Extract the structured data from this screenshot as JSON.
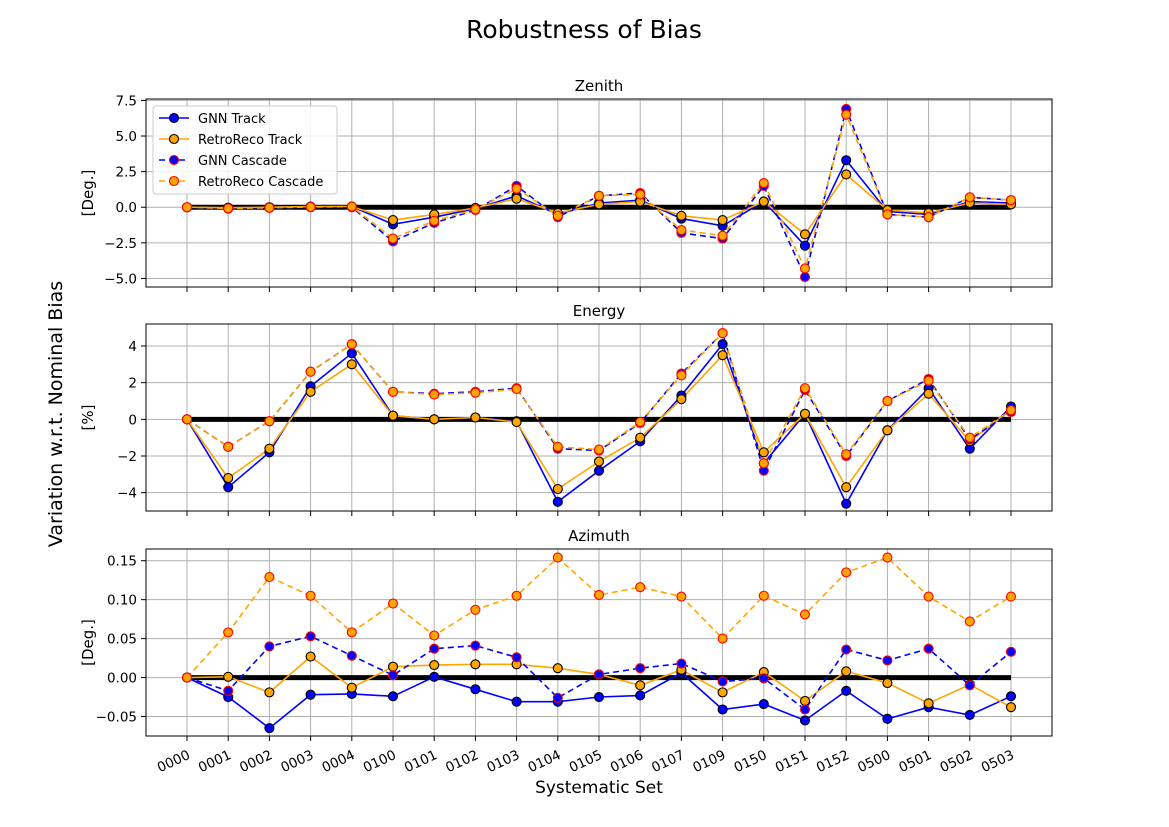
{
  "figure": {
    "title": "Robustness of Bias",
    "ylabel": "Variation w.r.t. Nominal Bias",
    "xlabel": "Systematic Set"
  },
  "colors": {
    "gnn": "#0000ff",
    "retro": "#ffa500",
    "cascade_edge": "#ff0000",
    "zero_line": "#000000",
    "grid": "#b0b0b0"
  },
  "chart_data": [
    {
      "type": "line",
      "title": "Zenith",
      "ylabel": "[Deg.]",
      "ylim": [
        -5.6,
        7.6
      ],
      "yticks": [
        -5.0,
        -2.5,
        0.0,
        2.5,
        5.0,
        7.5
      ],
      "ytick_labels": [
        "−5.0",
        "−2.5",
        "0.0",
        "2.5",
        "5.0",
        "7.5"
      ],
      "grid": true,
      "legend": "top-left",
      "categories": [
        "0000",
        "0001",
        "0002",
        "0003",
        "0004",
        "0100",
        "0101",
        "0102",
        "0103",
        "0104",
        "0105",
        "0106",
        "0107",
        "0109",
        "0150",
        "0151",
        "0152",
        "0500",
        "0501",
        "0502",
        "0503"
      ],
      "series": [
        {
          "name": "GNN Track",
          "values": [
            0.0,
            -0.05,
            0.0,
            0.02,
            0.05,
            -1.2,
            -0.7,
            -0.1,
            0.8,
            -0.5,
            0.3,
            0.5,
            -0.8,
            -1.3,
            0.4,
            -2.7,
            3.3,
            -0.3,
            -0.5,
            0.4,
            0.3
          ]
        },
        {
          "name": "RetroReco Track",
          "values": [
            0.0,
            -0.03,
            0.0,
            0.05,
            0.05,
            -0.9,
            -0.5,
            -0.05,
            0.6,
            -0.4,
            0.2,
            0.4,
            -0.6,
            -0.9,
            0.4,
            -1.9,
            2.3,
            -0.2,
            -0.4,
            0.3,
            0.2
          ]
        },
        {
          "name": "GNN Cascade",
          "values": [
            0.0,
            -0.1,
            -0.05,
            0.0,
            0.0,
            -2.4,
            -1.1,
            -0.2,
            1.5,
            -0.7,
            0.8,
            1.0,
            -1.8,
            -2.2,
            1.5,
            -4.9,
            6.9,
            -0.5,
            -0.7,
            0.7,
            0.5
          ]
        },
        {
          "name": "RetroReco Cascade",
          "values": [
            0.0,
            -0.08,
            -0.03,
            0.02,
            0.05,
            -2.2,
            -0.95,
            -0.15,
            1.3,
            -0.6,
            0.8,
            0.9,
            -1.6,
            -2.0,
            1.7,
            -4.3,
            6.5,
            -0.5,
            -0.7,
            0.7,
            0.5
          ]
        }
      ]
    },
    {
      "type": "line",
      "title": "Energy",
      "ylabel": "[%]",
      "ylim": [
        -5.0,
        5.2
      ],
      "yticks": [
        -4,
        -2,
        0,
        2,
        4
      ],
      "ytick_labels": [
        "−4",
        "−2",
        "0",
        "2",
        "4"
      ],
      "grid": true,
      "categories": [
        "0000",
        "0001",
        "0002",
        "0003",
        "0004",
        "0100",
        "0101",
        "0102",
        "0103",
        "0104",
        "0105",
        "0106",
        "0107",
        "0109",
        "0150",
        "0151",
        "0152",
        "0500",
        "0501",
        "0502",
        "0503"
      ],
      "series": [
        {
          "name": "GNN Track",
          "values": [
            0.0,
            -3.7,
            -1.8,
            1.8,
            3.6,
            0.2,
            0.0,
            0.1,
            -0.1,
            -4.5,
            -2.8,
            -1.2,
            1.3,
            4.1,
            -2.4,
            0.3,
            -4.6,
            -0.6,
            1.7,
            -1.6,
            0.7
          ]
        },
        {
          "name": "RetroReco Track",
          "values": [
            0.0,
            -3.2,
            -1.6,
            1.5,
            3.0,
            0.2,
            0.0,
            0.1,
            -0.15,
            -3.8,
            -2.3,
            -1.0,
            1.1,
            3.5,
            -1.8,
            0.3,
            -3.7,
            -0.6,
            1.4,
            -1.2,
            0.5
          ]
        },
        {
          "name": "GNN Cascade",
          "values": [
            0.0,
            -1.5,
            -0.1,
            2.6,
            4.1,
            1.5,
            1.4,
            1.5,
            1.7,
            -1.6,
            -1.7,
            -0.2,
            2.5,
            4.7,
            -2.8,
            1.6,
            -2.0,
            1.0,
            2.2,
            -1.1,
            0.4
          ]
        },
        {
          "name": "RetroReco Cascade",
          "values": [
            0.0,
            -1.5,
            -0.1,
            2.6,
            4.1,
            1.5,
            1.35,
            1.45,
            1.65,
            -1.5,
            -1.65,
            -0.15,
            2.4,
            4.7,
            -2.4,
            1.7,
            -1.9,
            1.0,
            2.1,
            -1.0,
            0.5
          ]
        }
      ]
    },
    {
      "type": "line",
      "title": "Azimuth",
      "ylabel": "[Deg.]",
      "ylim": [
        -0.075,
        0.165
      ],
      "yticks": [
        -0.05,
        0.0,
        0.05,
        0.1,
        0.15
      ],
      "ytick_labels": [
        "−0.05",
        "0.00",
        "0.05",
        "0.10",
        "0.15"
      ],
      "grid": true,
      "categories": [
        "0000",
        "0001",
        "0002",
        "0003",
        "0004",
        "0100",
        "0101",
        "0102",
        "0103",
        "0104",
        "0105",
        "0106",
        "0107",
        "0109",
        "0150",
        "0151",
        "0152",
        "0500",
        "0501",
        "0502",
        "0503"
      ],
      "series": [
        {
          "name": "GNN Track",
          "values": [
            0.0,
            -0.025,
            -0.065,
            -0.022,
            -0.021,
            -0.024,
            0.001,
            -0.015,
            -0.031,
            -0.031,
            -0.025,
            -0.023,
            0.006,
            -0.041,
            -0.034,
            -0.055,
            -0.017,
            -0.053,
            -0.038,
            -0.048,
            -0.024
          ]
        },
        {
          "name": "RetroReco Track",
          "values": [
            0.0,
            0.001,
            -0.019,
            0.027,
            -0.013,
            0.014,
            0.016,
            0.017,
            0.017,
            0.012,
            0.004,
            -0.01,
            0.01,
            -0.019,
            0.007,
            -0.03,
            0.008,
            -0.007,
            -0.033,
            -0.009,
            -0.038
          ]
        },
        {
          "name": "GNN Cascade",
          "values": [
            0.0,
            -0.017,
            0.04,
            0.053,
            0.028,
            0.003,
            0.037,
            0.041,
            0.026,
            -0.026,
            0.004,
            0.012,
            0.018,
            -0.005,
            -0.001,
            -0.041,
            0.036,
            0.022,
            0.037,
            -0.01,
            0.033
          ]
        },
        {
          "name": "RetroReco Cascade",
          "values": [
            0.0,
            0.058,
            0.129,
            0.105,
            0.058,
            0.095,
            0.054,
            0.087,
            0.105,
            0.154,
            0.106,
            0.116,
            0.104,
            0.05,
            0.105,
            0.081,
            0.135,
            0.154,
            0.104,
            0.072,
            0.104
          ]
        }
      ]
    }
  ]
}
